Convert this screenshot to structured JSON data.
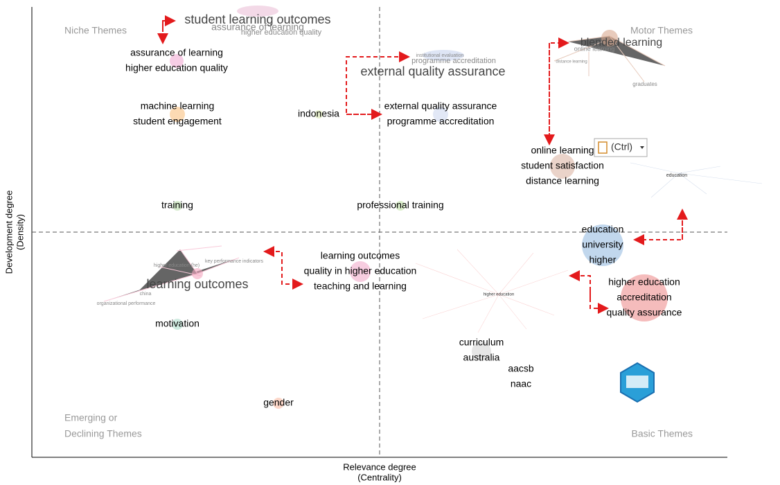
{
  "axes": {
    "x_label": [
      "Relevance degree",
      "(Centrality)"
    ],
    "y_label": [
      "Development degree",
      "(Density)"
    ]
  },
  "quadrants": [
    [
      "Niche Themes"
    ],
    [
      "Motor Themes"
    ],
    [
      "Emerging or",
      "Declining Themes"
    ],
    [
      "Basic Themes"
    ]
  ],
  "clusters": [
    {
      "labels": [
        "assurance of learning",
        "higher education quality"
      ]
    },
    {
      "labels": [
        "machine learning",
        "student engagement"
      ]
    },
    {
      "labels": [
        "indonesia"
      ]
    },
    {
      "labels": [
        "external quality assurance",
        "programme accreditation"
      ]
    },
    {
      "labels": [
        "online learning",
        "student satisfaction",
        "distance learning"
      ]
    },
    {
      "labels": [
        "training"
      ]
    },
    {
      "labels": [
        "professional training"
      ]
    },
    {
      "labels": [
        "education",
        "university",
        "higher"
      ]
    },
    {
      "labels": [
        "higher education",
        "accreditation",
        "quality assurance"
      ]
    },
    {
      "labels": [
        "learning outcomes",
        "quality in higher education",
        "teaching and learning"
      ]
    },
    {
      "labels": [
        "motivation"
      ]
    },
    {
      "labels": [
        "curriculum",
        "australia"
      ]
    },
    {
      "labels": [
        "aacsb",
        "naac"
      ]
    },
    {
      "labels": [
        "gender"
      ]
    }
  ],
  "insets": [
    {
      "title": "student learning outcomes",
      "labels": [
        "assurance of learning",
        "higher education quality"
      ]
    },
    {
      "title": "external quality assurance",
      "labels": [
        "institutional evaluation",
        "programme accreditation"
      ]
    },
    {
      "title": "blended learning",
      "labels": [
        "online learning",
        "distance learning",
        "graduates"
      ]
    },
    {
      "title": "education",
      "labels": []
    },
    {
      "title": "learning outcomes",
      "labels": [
        "higher education (he)",
        "key performance indicators",
        "china",
        "organizational performance"
      ]
    },
    {
      "title": "higher education",
      "labels": []
    }
  ],
  "paste_button": "(Ctrl)"
}
